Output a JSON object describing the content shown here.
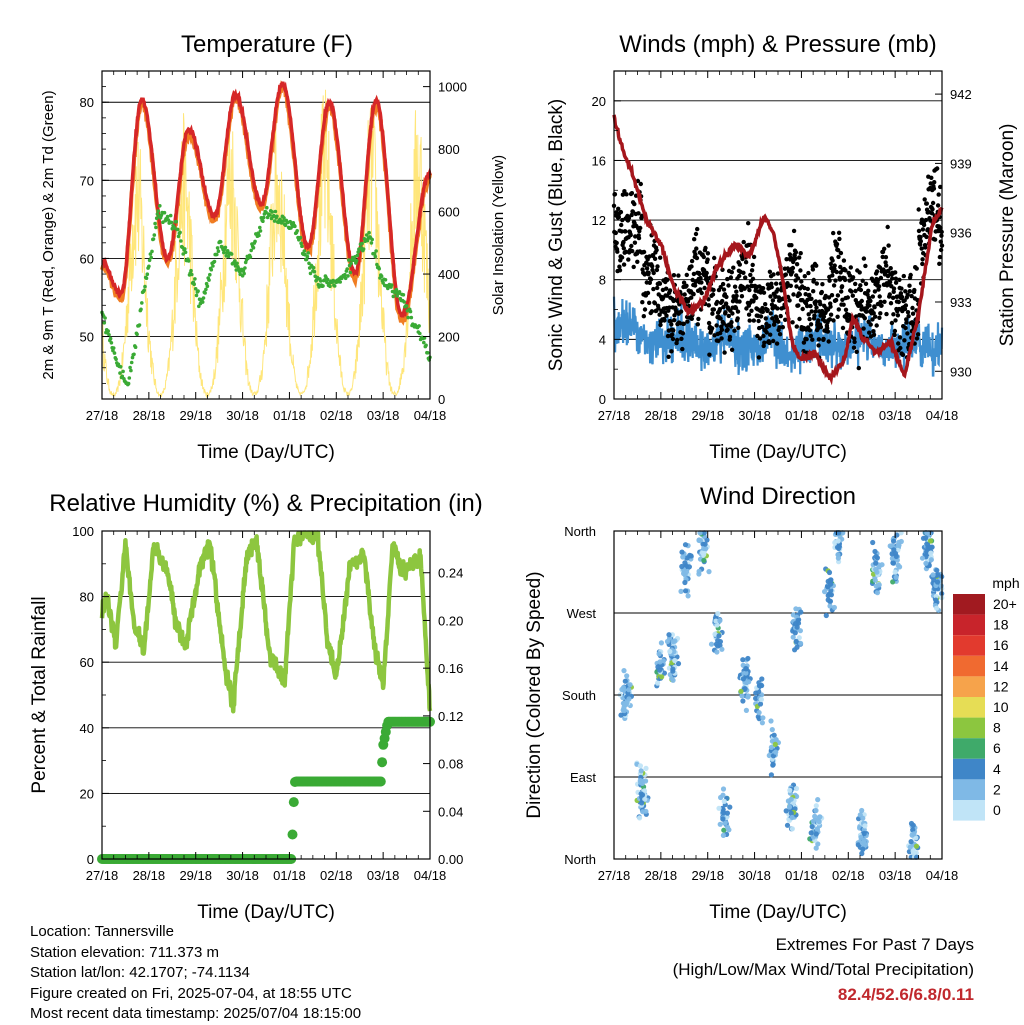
{
  "footer": {
    "location": "Location: Tannersville",
    "elevation": "Station elevation: 711.373 m",
    "latlon": "Station lat/lon: 42.1707; -74.1134",
    "created": "Figure created on Fri, 2025-07-04, at 18:55 UTC",
    "recent": "Most recent data timestamp: 2025/07/04 18:15:00",
    "extremes_title": "Extremes For Past 7 Days",
    "extremes_sub": "(High/Low/Max Wind/Total Precipitation)",
    "extremes_values": "82.4/52.6/6.8/0.11"
  },
  "colors": {
    "temp2m": "#d62728",
    "temp9m": "#f07d22",
    "dewpoint": "#3aaa35",
    "insolation": "#ffe36b",
    "wind": "#3f8fd0",
    "gust": "#000000",
    "pressure": "#a5161c",
    "rh": "#8dc63f",
    "precip": "#3aaa35"
  },
  "chart_data": [
    {
      "type": "line",
      "title": "Temperature (F)",
      "xlabel": "Time (Day/UTC)",
      "ylabel": "2m & 9m T (Red, Orange) & 2m Td (Green)",
      "y2label": "Solar Insolation (Yellow)",
      "x_ticks": [
        "27/18",
        "28/18",
        "29/18",
        "30/18",
        "01/18",
        "02/18",
        "03/18",
        "04/18"
      ],
      "xlim": [
        0,
        7
      ],
      "ylim": [
        42,
        84
      ],
      "y_ticks": [
        50,
        60,
        70,
        80
      ],
      "y2lim": [
        0,
        1050
      ],
      "y2_ticks": [
        0,
        200,
        400,
        600,
        800,
        1000
      ],
      "series": [
        {
          "name": "2m T",
          "color": "#d62728",
          "peaks": [
            80.3,
            76.5,
            81,
            82.4,
            80,
            80.2
          ],
          "troughs": [
            55.5,
            60,
            65.5,
            67,
            61.5,
            58,
            52.6
          ],
          "start": 59.5,
          "end": 71
        },
        {
          "name": "Td",
          "color": "#3aaa35",
          "approx": [
            [
              0,
              53
            ],
            [
              0.3,
              47
            ],
            [
              0.55,
              43.5
            ],
            [
              0.9,
              56
            ],
            [
              1.2,
              66
            ],
            [
              1.6,
              64
            ],
            [
              2.1,
              54
            ],
            [
              2.5,
              62
            ],
            [
              3,
              58
            ],
            [
              3.5,
              66
            ],
            [
              4.1,
              64
            ],
            [
              4.6,
              57
            ],
            [
              5.1,
              57
            ],
            [
              5.7,
              63
            ],
            [
              6,
              57
            ],
            [
              6.4,
              55
            ],
            [
              6.8,
              50
            ],
            [
              7,
              47
            ]
          ]
        },
        {
          "name": "Insolation",
          "color": "#ffe36b",
          "daily_peaks": [
            880,
            920,
            960,
            940,
            1010,
            980,
            1000
          ]
        }
      ]
    },
    {
      "type": "scatter",
      "title": "Winds (mph) & Pressure (mb)",
      "xlabel": "Time (Day/UTC)",
      "ylabel": "Sonic Wind & Gust (Blue, Black)",
      "y2label": "Station Pressure (Maroon)",
      "x_ticks": [
        "27/18",
        "28/18",
        "29/18",
        "30/18",
        "01/18",
        "02/18",
        "03/18",
        "04/18"
      ],
      "xlim": [
        0,
        7
      ],
      "ylim": [
        0,
        22
      ],
      "y_ticks": [
        0,
        4,
        8,
        12,
        16,
        20
      ],
      "y2lim": [
        928.8,
        943
      ],
      "y2_ticks": [
        930,
        933,
        936,
        939,
        942
      ],
      "pressure": [
        [
          0,
          941
        ],
        [
          0.15,
          939.8
        ],
        [
          0.4,
          938.5
        ],
        [
          0.7,
          936.5
        ],
        [
          1.0,
          935.5
        ],
        [
          1.3,
          933.5
        ],
        [
          1.6,
          932.6
        ],
        [
          1.9,
          933
        ],
        [
          2.2,
          934.5
        ],
        [
          2.6,
          935.5
        ],
        [
          2.9,
          935
        ],
        [
          3.2,
          936.7
        ],
        [
          3.4,
          936
        ],
        [
          3.6,
          934
        ],
        [
          3.8,
          931.2
        ],
        [
          4.0,
          930.5
        ],
        [
          4.3,
          930.8
        ],
        [
          4.6,
          929.7
        ],
        [
          4.9,
          930.4
        ],
        [
          5.1,
          932.3
        ],
        [
          5.3,
          931.5
        ],
        [
          5.6,
          930.8
        ],
        [
          5.9,
          931.3
        ],
        [
          6.2,
          929.8
        ],
        [
          6.5,
          932.5
        ],
        [
          6.8,
          936.5
        ],
        [
          7.0,
          937
        ]
      ]
    },
    {
      "type": "line",
      "title": "Relative Humidity (%) & Precipitation (in)",
      "xlabel": "Time (Day/UTC)",
      "ylabel": "Percent & Total Rainfall",
      "x_ticks": [
        "27/18",
        "28/18",
        "29/18",
        "30/18",
        "01/18",
        "02/18",
        "03/18",
        "04/18"
      ],
      "xlim": [
        0,
        7
      ],
      "ylim": [
        0,
        100
      ],
      "y_ticks": [
        0,
        20,
        40,
        60,
        80,
        100
      ],
      "y2lim": [
        0,
        0.275
      ],
      "y2_ticks": [
        0.0,
        0.04,
        0.08,
        0.12,
        0.16,
        0.2,
        0.24
      ],
      "rh": [
        [
          0,
          75
        ],
        [
          0.1,
          80
        ],
        [
          0.3,
          66
        ],
        [
          0.5,
          96
        ],
        [
          0.7,
          70
        ],
        [
          0.9,
          64
        ],
        [
          1.1,
          95
        ],
        [
          1.4,
          88
        ],
        [
          1.6,
          70
        ],
        [
          1.8,
          66
        ],
        [
          2.1,
          90
        ],
        [
          2.3,
          97
        ],
        [
          2.6,
          60
        ],
        [
          2.8,
          47
        ],
        [
          3.1,
          93
        ],
        [
          3.3,
          97
        ],
        [
          3.6,
          60
        ],
        [
          3.9,
          55
        ],
        [
          4.1,
          96
        ],
        [
          4.3,
          99
        ],
        [
          4.6,
          99
        ],
        [
          4.8,
          68
        ],
        [
          5.0,
          55
        ],
        [
          5.3,
          90
        ],
        [
          5.6,
          93
        ],
        [
          5.8,
          66
        ],
        [
          6.0,
          52
        ],
        [
          6.2,
          96
        ],
        [
          6.4,
          88
        ],
        [
          6.6,
          90
        ],
        [
          6.8,
          92
        ],
        [
          7,
          45
        ]
      ],
      "precip": [
        [
          0,
          0
        ],
        [
          4.05,
          0
        ],
        [
          4.08,
          0.04
        ],
        [
          4.12,
          0.065
        ],
        [
          5.95,
          0.065
        ],
        [
          6.0,
          0.095
        ],
        [
          6.1,
          0.115
        ],
        [
          7,
          0.115
        ]
      ]
    },
    {
      "type": "scatter",
      "title": "Wind Direction",
      "xlabel": "Time (Day/UTC)",
      "ylabel": "Direction (Colored By Speed)",
      "x_ticks": [
        "27/18",
        "28/18",
        "29/18",
        "30/18",
        "01/18",
        "02/18",
        "03/18",
        "04/18"
      ],
      "xlim": [
        0,
        7
      ],
      "y_ticks": [
        "North",
        "East",
        "South",
        "West",
        "North"
      ],
      "ylim": [
        0,
        360
      ],
      "legend": {
        "title": "mph",
        "labels": [
          "20+",
          "18",
          "16",
          "14",
          "12",
          "10",
          "8",
          "6",
          "4",
          "2",
          "0"
        ],
        "colors": [
          "#a11a20",
          "#c8242b",
          "#e23a2e",
          "#f06a30",
          "#f6a34b",
          "#e6dd55",
          "#8cc63f",
          "#3faa6a",
          "#3f86c8",
          "#7fb9e6",
          "#c0e4f7"
        ]
      },
      "direction_centers": [
        [
          0.25,
          180
        ],
        [
          0.6,
          75
        ],
        [
          1.0,
          210
        ],
        [
          1.25,
          225
        ],
        [
          1.55,
          320
        ],
        [
          1.9,
          335
        ],
        [
          2.2,
          250
        ],
        [
          2.35,
          45
        ],
        [
          2.8,
          195
        ],
        [
          3.1,
          180
        ],
        [
          3.4,
          120
        ],
        [
          3.8,
          60
        ],
        [
          3.9,
          250
        ],
        [
          4.3,
          35
        ],
        [
          4.6,
          295
        ],
        [
          4.8,
          350
        ],
        [
          5.3,
          30
        ],
        [
          5.6,
          320
        ],
        [
          6.0,
          330
        ],
        [
          6.4,
          15
        ],
        [
          6.7,
          345
        ],
        [
          6.9,
          300
        ]
      ]
    }
  ]
}
